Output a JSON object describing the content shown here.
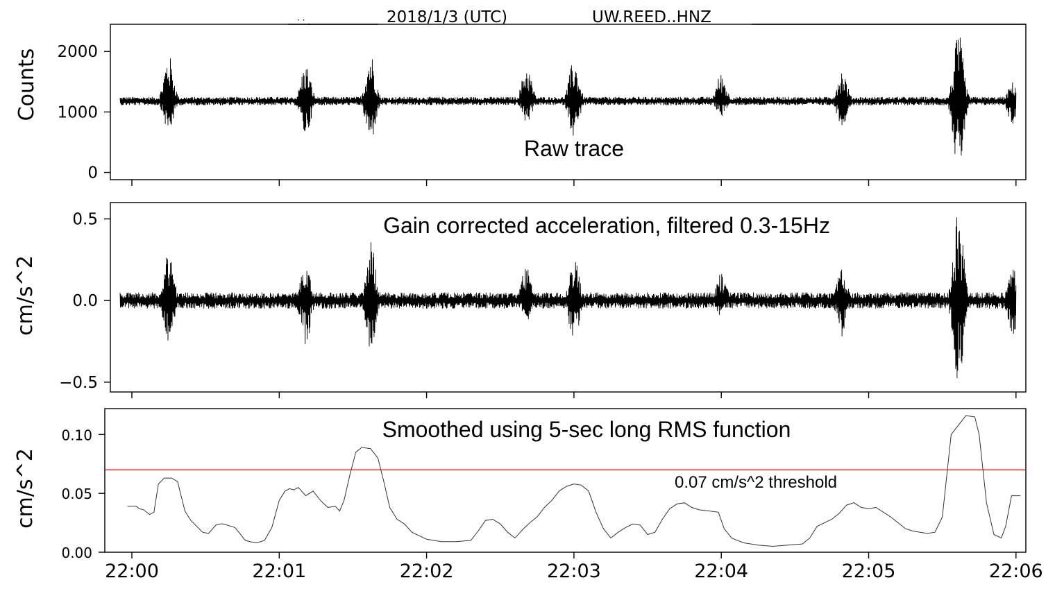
{
  "header": {
    "date_label": "2018/1/3 (UTC)",
    "station_label": "UW.REED..HNZ"
  },
  "chart_data": [
    {
      "type": "line",
      "title": "",
      "annotation": "Raw trace",
      "ylabel": "Counts",
      "ylim": [
        -120,
        2450
      ],
      "yticks": [
        0,
        1000,
        2000
      ],
      "ytick_labels": [
        "0",
        "1000",
        "2000"
      ],
      "baseline": 1180,
      "noise_amplitude": 70,
      "xlim": [
        -0.15,
        6.1
      ],
      "events": [
        {
          "t": 0.25,
          "up": 1950,
          "down": 650
        },
        {
          "t": 1.18,
          "up": 1800,
          "down": 600
        },
        {
          "t": 1.62,
          "up": 1990,
          "down": 490
        },
        {
          "t": 2.68,
          "up": 1780,
          "down": 810
        },
        {
          "t": 3.0,
          "up": 1870,
          "down": 580
        },
        {
          "t": 4.0,
          "up": 1650,
          "down": 930
        },
        {
          "t": 4.82,
          "up": 1720,
          "down": 760
        },
        {
          "t": 5.61,
          "up": 2300,
          "down": -30
        },
        {
          "t": 5.98,
          "up": 1500,
          "down": 780
        }
      ]
    },
    {
      "type": "line",
      "annotation": "Gain corrected acceleration, filtered  0.3-15Hz",
      "ylabel": "cm/s^2",
      "ylim": [
        -0.56,
        0.6
      ],
      "yticks": [
        -0.5,
        0.0,
        0.5
      ],
      "ytick_labels": [
        "−0.5",
        "0.0",
        "0.5"
      ],
      "baseline": 0.0,
      "noise_amplitude": 0.05,
      "xlim": [
        -0.15,
        6.1
      ],
      "events": [
        {
          "t": 0.25,
          "up": 0.33,
          "down": -0.25
        },
        {
          "t": 1.18,
          "up": 0.26,
          "down": -0.28
        },
        {
          "t": 1.62,
          "up": 0.38,
          "down": -0.33
        },
        {
          "t": 2.68,
          "up": 0.25,
          "down": -0.13
        },
        {
          "t": 3.0,
          "up": 0.3,
          "down": -0.26
        },
        {
          "t": 4.0,
          "up": 0.18,
          "down": -0.1
        },
        {
          "t": 4.82,
          "up": 0.22,
          "down": -0.22
        },
        {
          "t": 5.61,
          "up": 0.55,
          "down": -0.51
        },
        {
          "t": 5.98,
          "up": 0.2,
          "down": -0.22
        }
      ]
    },
    {
      "type": "line",
      "annotation": "Smoothed using 5-sec long RMS function",
      "ylabel": "cm/s^2",
      "ylim": [
        0.0,
        0.122
      ],
      "yticks": [
        0.0,
        0.05,
        0.1
      ],
      "ytick_labels": [
        "0.00",
        "0.05",
        "0.10"
      ],
      "xlim": [
        -0.15,
        6.1
      ],
      "xticks": [
        0,
        1,
        2,
        3,
        4,
        5,
        6
      ],
      "xtick_labels": [
        "22:00",
        "22:01",
        "22:02",
        "22:03",
        "22:04",
        "22:05",
        "22:06"
      ],
      "threshold": {
        "value": 0.07,
        "label": "0.07 cm/s^2 threshold",
        "color": "#e8000b"
      },
      "series": [
        {
          "x": [
            -0.03,
            0.03,
            0.05,
            0.08,
            0.12,
            0.15,
            0.18,
            0.22,
            0.27,
            0.31,
            0.33,
            0.36,
            0.4,
            0.44,
            0.48,
            0.52,
            0.57,
            0.6,
            0.62,
            0.7,
            0.77,
            0.8,
            0.85,
            0.9,
            0.95,
            1.0,
            1.04,
            1.07,
            1.1,
            1.13,
            1.18,
            1.23,
            1.28,
            1.33,
            1.38,
            1.41,
            1.44,
            1.48,
            1.52,
            1.56,
            1.62,
            1.67,
            1.71,
            1.75,
            1.8,
            1.85,
            1.9,
            2.0,
            2.1,
            2.2,
            2.3,
            2.35,
            2.4,
            2.45,
            2.5,
            2.55,
            2.6,
            2.65,
            2.7,
            2.75,
            2.8,
            2.85,
            2.9,
            2.95,
            3.0,
            3.05,
            3.1,
            3.15,
            3.2,
            3.25,
            3.3,
            3.35,
            3.4,
            3.45,
            3.5,
            3.55,
            3.6,
            3.65,
            3.7,
            3.75,
            3.8,
            3.85,
            3.92,
            3.98,
            4.02,
            4.07,
            4.15,
            4.25,
            4.35,
            4.45,
            4.55,
            4.6,
            4.65,
            4.7,
            4.75,
            4.8,
            4.85,
            4.9,
            4.95,
            5.0,
            5.05,
            5.1,
            5.15,
            5.2,
            5.25,
            5.3,
            5.35,
            5.4,
            5.45,
            5.5,
            5.56,
            5.66,
            5.72,
            5.75,
            5.8,
            5.85,
            5.9,
            5.93,
            5.97,
            6.03
          ],
          "y": [
            0.039,
            0.039,
            0.037,
            0.036,
            0.032,
            0.034,
            0.058,
            0.063,
            0.063,
            0.06,
            0.05,
            0.035,
            0.027,
            0.022,
            0.017,
            0.016,
            0.023,
            0.024,
            0.024,
            0.021,
            0.01,
            0.009,
            0.008,
            0.01,
            0.021,
            0.044,
            0.052,
            0.054,
            0.053,
            0.055,
            0.048,
            0.052,
            0.044,
            0.038,
            0.039,
            0.035,
            0.044,
            0.066,
            0.085,
            0.089,
            0.088,
            0.08,
            0.06,
            0.038,
            0.028,
            0.024,
            0.017,
            0.011,
            0.009,
            0.009,
            0.01,
            0.018,
            0.027,
            0.028,
            0.024,
            0.017,
            0.012,
            0.019,
            0.025,
            0.03,
            0.038,
            0.044,
            0.052,
            0.056,
            0.058,
            0.057,
            0.052,
            0.034,
            0.02,
            0.012,
            0.017,
            0.021,
            0.024,
            0.023,
            0.015,
            0.017,
            0.028,
            0.037,
            0.041,
            0.042,
            0.038,
            0.036,
            0.035,
            0.034,
            0.02,
            0.012,
            0.008,
            0.006,
            0.005,
            0.006,
            0.007,
            0.012,
            0.022,
            0.025,
            0.028,
            0.033,
            0.04,
            0.042,
            0.038,
            0.037,
            0.038,
            0.034,
            0.03,
            0.025,
            0.02,
            0.018,
            0.017,
            0.016,
            0.017,
            0.03,
            0.1,
            0.116,
            0.115,
            0.1,
            0.042,
            0.015,
            0.012,
            0.022,
            0.048,
            0.048
          ]
        }
      ]
    }
  ]
}
